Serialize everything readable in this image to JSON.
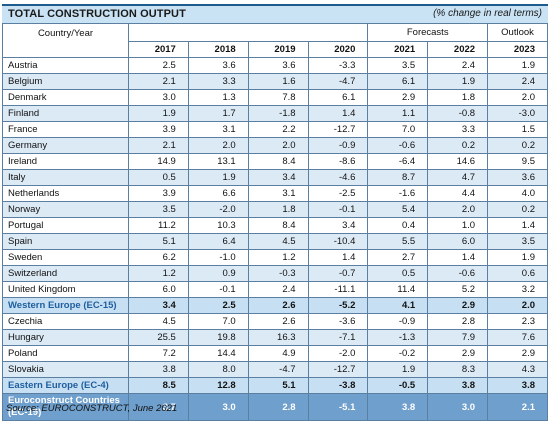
{
  "header": {
    "title": "TOTAL CONSTRUCTION OUTPUT",
    "unit_note": "(% change in real terms)"
  },
  "columns": {
    "country_label": "Country/Year",
    "group_forecasts": "Forecasts",
    "group_outlook": "Outlook",
    "years": [
      "2017",
      "2018",
      "2019",
      "2020",
      "2021",
      "2022",
      "2023"
    ]
  },
  "rows": [
    {
      "name": "Austria",
      "values": [
        "2.5",
        "3.6",
        "3.6",
        "-3.3",
        "3.5",
        "2.4",
        "1.9"
      ]
    },
    {
      "name": "Belgium",
      "values": [
        "2.1",
        "3.3",
        "1.6",
        "-4.7",
        "6.1",
        "1.9",
        "2.4"
      ]
    },
    {
      "name": "Denmark",
      "values": [
        "3.0",
        "1.3",
        "7.8",
        "6.1",
        "2.9",
        "1.8",
        "2.0"
      ]
    },
    {
      "name": "Finland",
      "values": [
        "1.9",
        "1.7",
        "-1.8",
        "1.4",
        "1.1",
        "-0.8",
        "-3.0"
      ]
    },
    {
      "name": "France",
      "values": [
        "3.9",
        "3.1",
        "2.2",
        "-12.7",
        "7.0",
        "3.3",
        "1.5"
      ]
    },
    {
      "name": "Germany",
      "values": [
        "2.1",
        "2.0",
        "2.0",
        "-0.9",
        "-0.6",
        "0.2",
        "0.2"
      ]
    },
    {
      "name": "Ireland",
      "values": [
        "14.9",
        "13.1",
        "8.4",
        "-8.6",
        "-6.4",
        "14.6",
        "9.5"
      ]
    },
    {
      "name": "Italy",
      "values": [
        "0.5",
        "1.9",
        "3.4",
        "-4.6",
        "8.7",
        "4.7",
        "3.6"
      ]
    },
    {
      "name": "Netherlands",
      "values": [
        "3.9",
        "6.6",
        "3.1",
        "-2.5",
        "-1.6",
        "4.4",
        "4.0"
      ]
    },
    {
      "name": "Norway",
      "values": [
        "3.5",
        "-2.0",
        "1.8",
        "-0.1",
        "5.4",
        "2.0",
        "0.2"
      ]
    },
    {
      "name": "Portugal",
      "values": [
        "11.2",
        "10.3",
        "8.4",
        "3.4",
        "0.4",
        "1.0",
        "1.4"
      ]
    },
    {
      "name": "Spain",
      "values": [
        "5.1",
        "6.4",
        "4.5",
        "-10.4",
        "5.5",
        "6.0",
        "3.5"
      ]
    },
    {
      "name": "Sweden",
      "values": [
        "6.2",
        "-1.0",
        "1.2",
        "1.4",
        "2.7",
        "1.4",
        "1.9"
      ]
    },
    {
      "name": "Switzerland",
      "values": [
        "1.2",
        "0.9",
        "-0.3",
        "-0.7",
        "0.5",
        "-0.6",
        "0.6"
      ]
    },
    {
      "name": "United Kingdom",
      "values": [
        "6.0",
        "-0.1",
        "2.4",
        "-11.1",
        "11.4",
        "5.2",
        "3.2"
      ]
    },
    {
      "name": "Western Europe (EC-15)",
      "values": [
        "3.4",
        "2.5",
        "2.6",
        "-5.2",
        "4.1",
        "2.9",
        "2.0"
      ],
      "kind": "sub"
    },
    {
      "name": "Czechia",
      "values": [
        "4.5",
        "7.0",
        "2.6",
        "-3.6",
        "-0.9",
        "2.8",
        "2.3"
      ]
    },
    {
      "name": "Hungary",
      "values": [
        "25.5",
        "19.8",
        "16.3",
        "-7.1",
        "-1.3",
        "7.9",
        "7.6"
      ]
    },
    {
      "name": "Poland",
      "values": [
        "7.2",
        "14.4",
        "4.9",
        "-2.0",
        "-0.2",
        "2.9",
        "2.9"
      ]
    },
    {
      "name": "Slovakia",
      "values": [
        "3.8",
        "8.0",
        "-4.7",
        "-12.7",
        "1.9",
        "8.3",
        "4.3"
      ]
    },
    {
      "name": "Eastern Europe (EC-4)",
      "values": [
        "8.5",
        "12.8",
        "5.1",
        "-3.8",
        "-0.5",
        "3.8",
        "3.8"
      ],
      "kind": "sub"
    },
    {
      "name": "Euroconstruct Countries (EC-19)",
      "values": [
        "3.7",
        "3.0",
        "2.8",
        "-5.1",
        "3.8",
        "3.0",
        "2.1"
      ],
      "kind": "total"
    }
  ],
  "footer": {
    "source": "Source: EUROCONSTRUCT, June 2021"
  },
  "colors": {
    "title_band": "#c9e3f4",
    "row_alt": "#dceaf6",
    "subtotal_row": "#c7dff2",
    "subtotal_text": "#1f5fa0",
    "total_row": "#6f9fcc",
    "grid_line": "#5a7fa0"
  }
}
